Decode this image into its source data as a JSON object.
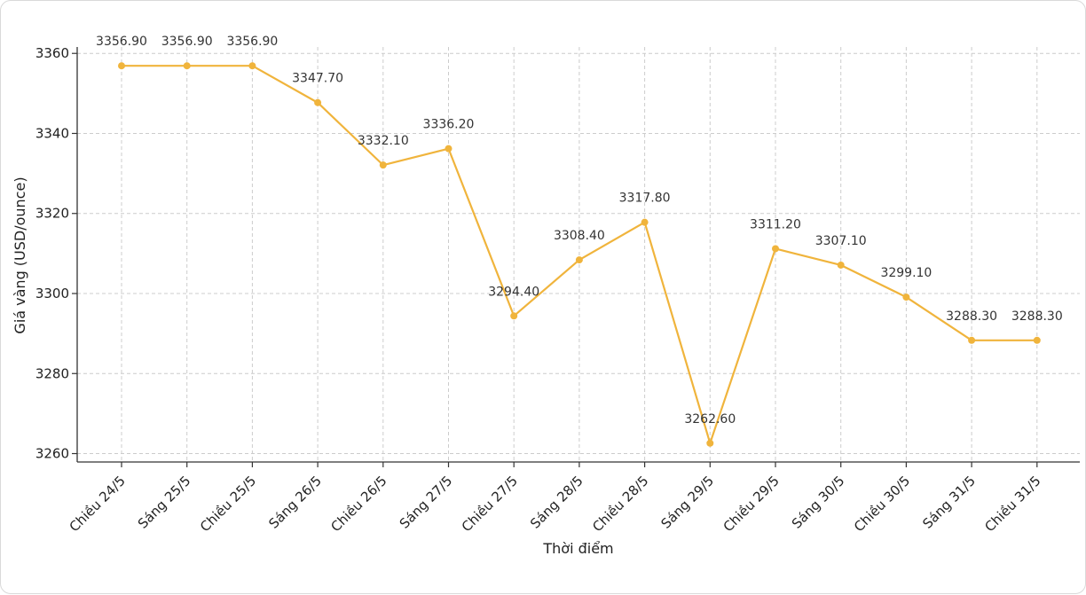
{
  "chart_data": {
    "type": "line",
    "xlabel": "Thời điểm",
    "ylabel": "Giá vàng (USD/ounce)",
    "categories": [
      "Chiều 24/5",
      "Sáng 25/5",
      "Chiều 25/5",
      "Sáng 26/5",
      "Chiều 26/5",
      "Sáng 27/5",
      "Chiều 27/5",
      "Sáng 28/5",
      "Chiều 28/5",
      "Sáng 29/5",
      "Chiều 29/5",
      "Sáng 30/5",
      "Chiều 30/5",
      "Sáng 31/5",
      "Chiều 31/5"
    ],
    "series": [
      {
        "values": [
          3356.9,
          3356.9,
          3356.9,
          3347.7,
          3332.1,
          3336.2,
          3294.4,
          3308.4,
          3317.8,
          3262.6,
          3311.2,
          3307.1,
          3299.1,
          3288.3,
          3288.3
        ],
        "labels": [
          "3356.90",
          "3356.90",
          "3356.90",
          "3347.70",
          "3332.10",
          "3336.20",
          "3294.40",
          "3308.40",
          "3317.80",
          "3262.60",
          "3311.20",
          "3307.10",
          "3299.10",
          "3288.30",
          "3288.30"
        ]
      }
    ],
    "yticks": [
      "3260",
      "3280",
      "3300",
      "3320",
      "3340",
      "3360"
    ],
    "ytick_values": [
      3260,
      3280,
      3300,
      3320,
      3340,
      3360
    ],
    "ylim": [
      3257.9,
      3361.6
    ],
    "grid": true,
    "line_color": "#f0b43c",
    "grid_color": "#cccccc"
  }
}
